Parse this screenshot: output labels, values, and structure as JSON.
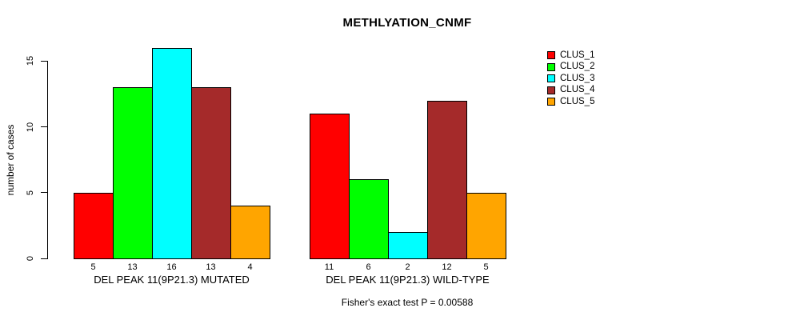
{
  "chart_data": {
    "type": "bar",
    "title": "METHLYATION_CNMF",
    "ylabel": "number of cases",
    "yticks": [
      0,
      5,
      10,
      15
    ],
    "ylim": [
      0,
      16
    ],
    "grid": false,
    "categories": [
      "CLUS_1",
      "CLUS_2",
      "CLUS_3",
      "CLUS_4",
      "CLUS_5"
    ],
    "series_colors": [
      "#FF0000",
      "#00FF00",
      "#00FFFF",
      "#A52A2A",
      "#FFA500"
    ],
    "groups": [
      {
        "label": "DEL PEAK 11(9P21.3) MUTATED",
        "values": [
          5,
          13,
          16,
          13,
          4
        ]
      },
      {
        "label": "DEL PEAK 11(9P21.3) WILD-TYPE",
        "values": [
          11,
          6,
          2,
          12,
          5
        ]
      }
    ],
    "bar_value_labels": true,
    "legend": {
      "position": "right",
      "entries": [
        "CLUS_1",
        "CLUS_2",
        "CLUS_3",
        "CLUS_4",
        "CLUS_5"
      ]
    },
    "annotation": "Fisher's exact test P = 0.00588",
    "axis_color": "#000000",
    "background_color": "#FFFFFF"
  }
}
